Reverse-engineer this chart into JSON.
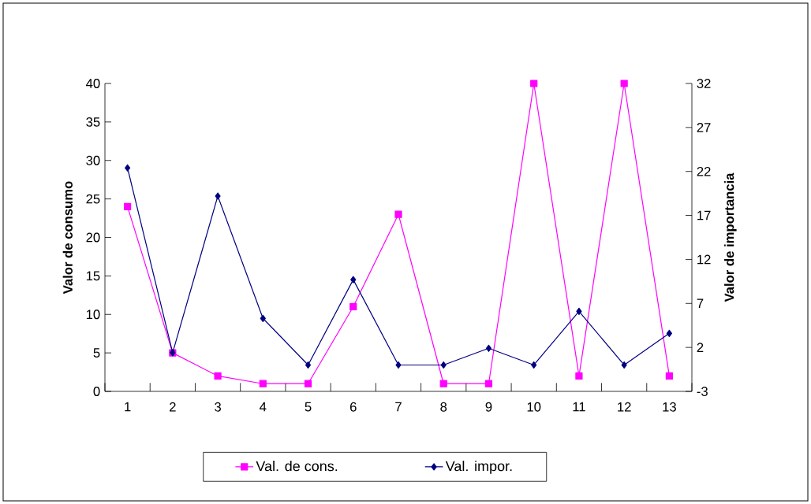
{
  "chart_data": {
    "type": "line",
    "categories": [
      "1",
      "2",
      "3",
      "4",
      "5",
      "6",
      "7",
      "8",
      "9",
      "10",
      "11",
      "12",
      "13"
    ],
    "ylabel": "Valor de consumo",
    "y2label": "Valor de importancia",
    "ylim": [
      0,
      40
    ],
    "yticks": [
      0,
      5,
      10,
      15,
      20,
      25,
      30,
      35,
      40
    ],
    "y2lim": [
      -3,
      32
    ],
    "y2ticks": [
      -3,
      2,
      7,
      12,
      17,
      22,
      27,
      32
    ],
    "legend": "bottom",
    "grid": false,
    "series": [
      {
        "name": "Val. de cons.",
        "color": "#ff00ff",
        "marker": "square",
        "values": [
          24,
          5,
          2,
          1,
          1,
          11,
          23,
          1,
          1,
          40,
          2,
          40,
          2
        ]
      },
      {
        "name": "Val. impor.",
        "color": "#000080",
        "marker": "diamond",
        "axis": "y2",
        "values": [
          22.4,
          1.4,
          19.2,
          5.3,
          0,
          9.7,
          0,
          0,
          1.9,
          0,
          6.1,
          0,
          3.6
        ]
      }
    ]
  }
}
